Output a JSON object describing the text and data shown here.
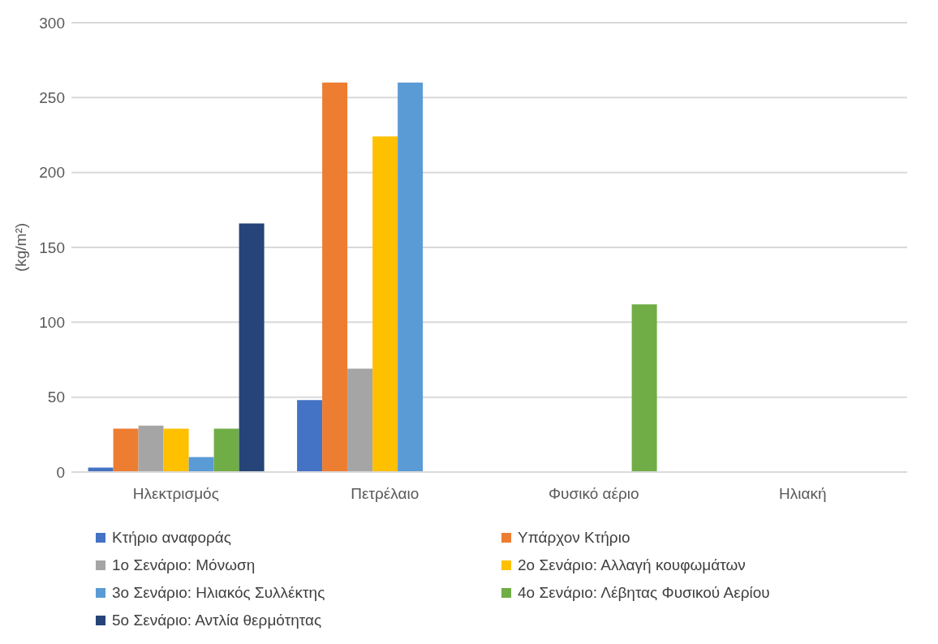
{
  "chart_data": {
    "type": "bar",
    "ylabel": "(kg/m²)",
    "categories": [
      "Ηλεκτρισμός",
      "Πετρέλαιο",
      "Φυσικό αέριο",
      "Ηλιακή"
    ],
    "series": [
      {
        "name": "Κτήριο αναφοράς",
        "color": "#4472c4",
        "values": [
          3,
          48,
          0,
          0
        ]
      },
      {
        "name": "Υπάρχον Κτήριο",
        "color": "#ed7d31",
        "values": [
          29,
          260,
          0,
          0
        ]
      },
      {
        "name": "1ο Σενάριο: Μόνωση",
        "color": "#a5a5a5",
        "values": [
          31,
          69,
          0,
          0
        ]
      },
      {
        "name": "2ο Σενάριο: Αλλαγή κουφωμάτων",
        "color": "#ffc000",
        "values": [
          29,
          224,
          0,
          0
        ]
      },
      {
        "name": "3ο Σενάριο: Ηλιακός Συλλέκτης",
        "color": "#5b9bd5",
        "values": [
          10,
          260,
          0,
          0
        ]
      },
      {
        "name": "4ο Σενάριο: Λέβητας Φυσικού Αερίου",
        "color": "#70ad47",
        "values": [
          29,
          0,
          112,
          0
        ]
      },
      {
        "name": "5ο Σενάριο: Αντλία θερμότητας",
        "color": "#264478",
        "values": [
          166,
          0,
          0,
          0
        ]
      }
    ],
    "ylim": [
      0,
      300
    ],
    "yticks": [
      0,
      50,
      100,
      150,
      200,
      250,
      300
    ],
    "grid": "y",
    "legend": "bottom"
  }
}
